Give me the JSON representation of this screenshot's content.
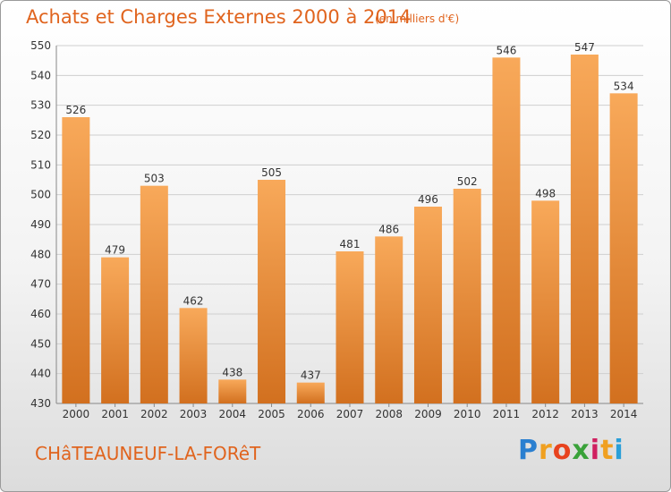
{
  "header": {
    "title": "Achats et Charges Externes 2000 à 2014",
    "subtitle": "(en milliers d'€)"
  },
  "footer": {
    "place": "CHâTEAUNEUF-LA-FORêT",
    "logo": {
      "letters": [
        "P",
        "r",
        "o",
        "x",
        "i",
        "t",
        "i"
      ],
      "colors": [
        "#2a7fd0",
        "#f0a020",
        "#e8431e",
        "#3aa23a",
        "#d02060",
        "#f0a020",
        "#2a9fd8"
      ]
    }
  },
  "chart_data": {
    "type": "bar",
    "categories": [
      "2000",
      "2001",
      "2002",
      "2003",
      "2004",
      "2005",
      "2006",
      "2007",
      "2008",
      "2009",
      "2010",
      "2011",
      "2012",
      "2013",
      "2014"
    ],
    "values": [
      526,
      479,
      503,
      462,
      438,
      505,
      437,
      481,
      486,
      496,
      502,
      546,
      498,
      547,
      534
    ],
    "title": "Achats et Charges Externes 2000 à 2014",
    "subtitle": "(en milliers d'€)",
    "xlabel": "",
    "ylabel": "",
    "ylim": [
      430,
      550
    ],
    "yticks": [
      430,
      440,
      450,
      460,
      470,
      480,
      490,
      500,
      510,
      520,
      530,
      540,
      550
    ],
    "grid": true,
    "colors": {
      "bar_light": "#f8a95a",
      "bar_dark": "#d2701f",
      "grid": "#cfcfcf",
      "text": "#333333"
    }
  }
}
